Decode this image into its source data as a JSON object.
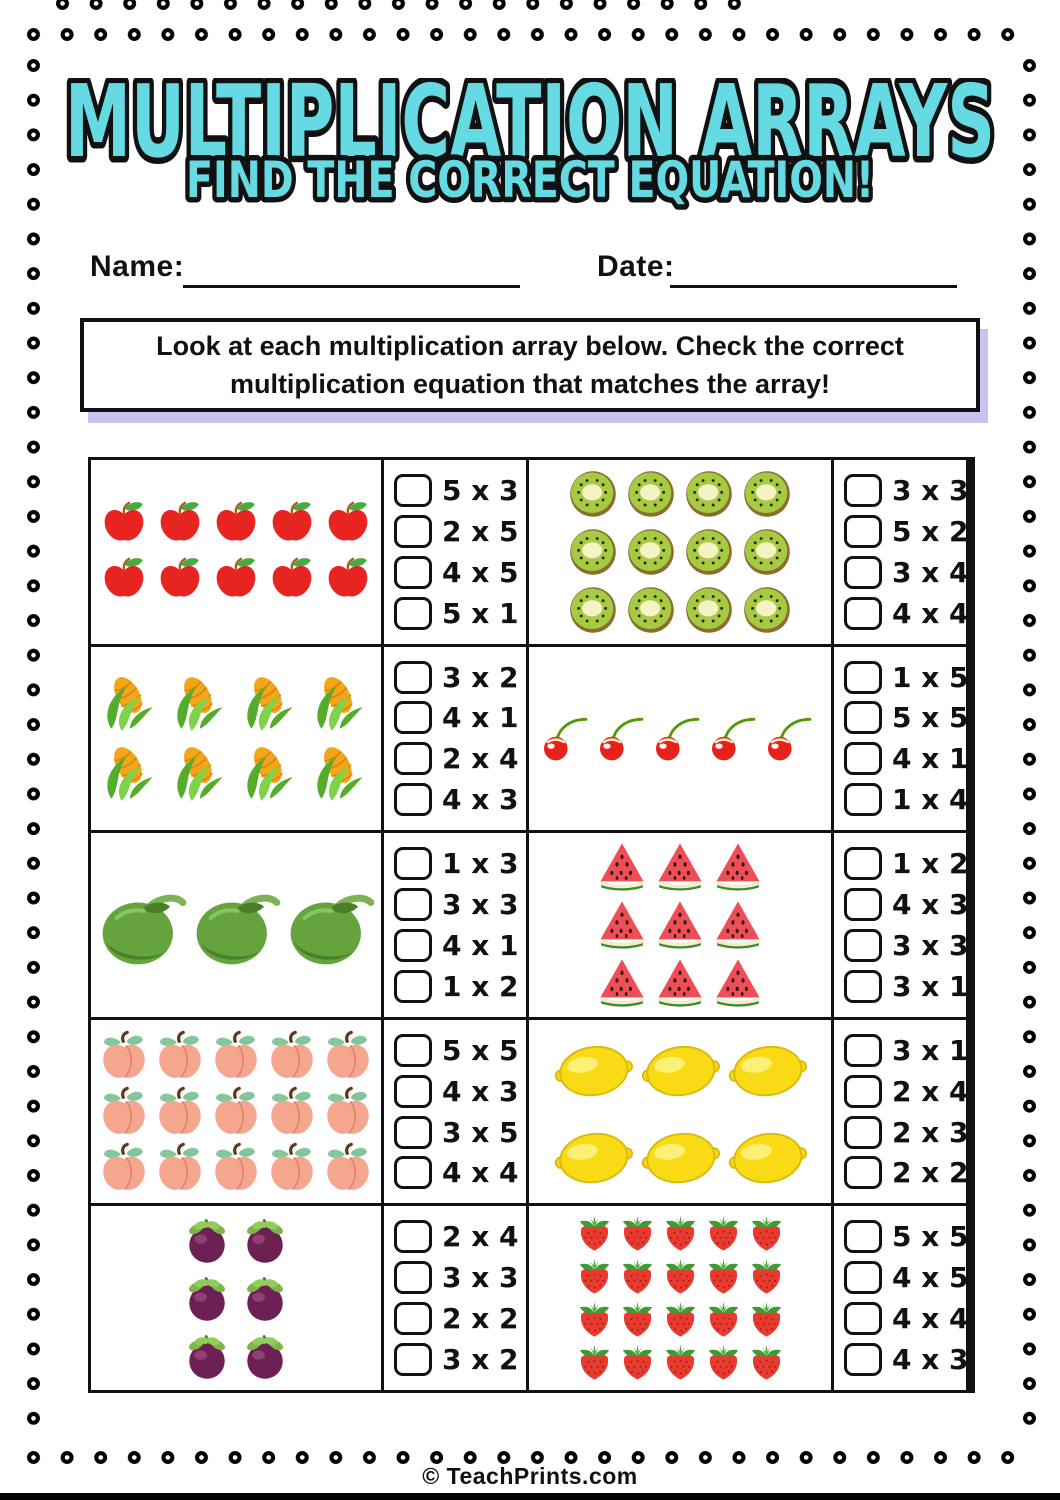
{
  "page": {
    "title": "MULTIPLICATION ARRAYS",
    "subtitle": "FIND THE CORRECT EQUATION!",
    "name_label": "Name:",
    "date_label": "Date:",
    "instructions_line1": "Look at each multiplication array below. Check the correct",
    "instructions_line2": "multiplication equation that matches the array!",
    "footer": "© TeachPrints.com",
    "title_color": "#65dae3",
    "outline_color": "#111111",
    "shadow_color": "#c7c5f0"
  },
  "problems": [
    {
      "fruit": "apple",
      "rows": 2,
      "cols": 5,
      "options": [
        "5 x 3",
        "2 x 5",
        "4 x 5",
        "5 x 1"
      ]
    },
    {
      "fruit": "kiwi",
      "rows": 3,
      "cols": 4,
      "options": [
        "3 x 3",
        "5 x 2",
        "3 x 4",
        "4 x 4"
      ]
    },
    {
      "fruit": "corn",
      "rows": 2,
      "cols": 4,
      "options": [
        "3 x 2",
        "4 x 1",
        "2 x 4",
        "4 x 3"
      ]
    },
    {
      "fruit": "cherry",
      "rows": 1,
      "cols": 5,
      "options": [
        "1 x 5",
        "5 x 5",
        "4 x 1",
        "1 x 4"
      ]
    },
    {
      "fruit": "coconut",
      "rows": 1,
      "cols": 3,
      "options": [
        "1 x 3",
        "3 x 3",
        "4 x 1",
        "1 x 2"
      ]
    },
    {
      "fruit": "watermelon",
      "rows": 3,
      "cols": 3,
      "options": [
        "1 x 2",
        "4 x 3",
        "3 x 3",
        "3 x 1"
      ]
    },
    {
      "fruit": "peach",
      "rows": 3,
      "cols": 5,
      "options": [
        "5 x 5",
        "4 x 3",
        "3 x 5",
        "4 x 4"
      ]
    },
    {
      "fruit": "lemon",
      "rows": 2,
      "cols": 3,
      "options": [
        "3 x 1",
        "2 x 4",
        "2 x 3",
        "2 x 2"
      ]
    },
    {
      "fruit": "mangosteen",
      "rows": 3,
      "cols": 2,
      "options": [
        "2 x 4",
        "3 x 3",
        "2 x 2",
        "3 x 2"
      ]
    },
    {
      "fruit": "strawberry",
      "rows": 4,
      "cols": 5,
      "options": [
        "5 x 5",
        "4 x 5",
        "4 x 4",
        "4 x 3"
      ]
    }
  ]
}
